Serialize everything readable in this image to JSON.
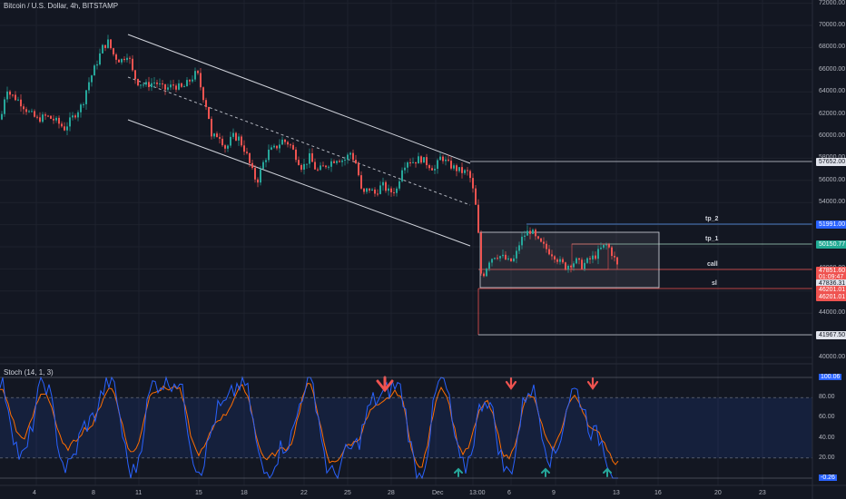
{
  "header": {
    "title": "Bitcoin / U.S. Dollar, 4h, BITSTAMP"
  },
  "indicator": {
    "title": "Stoch (14, 1, 3)"
  },
  "colors": {
    "up": "#26a69a",
    "down": "#ef5350",
    "k_line": "#2962ff",
    "d_line": "#ff6d00",
    "bg": "#131722",
    "grid": "#1e222d"
  },
  "price_axis": {
    "ticks": [
      "72000.00",
      "70000.00",
      "68000.00",
      "66000.00",
      "64000.00",
      "62000.00",
      "60000.00",
      "58000.00",
      "56000.00",
      "54000.00",
      "52000.00",
      "50000.00",
      "48000.00",
      "46000.00",
      "44000.00",
      "42000.00",
      "40000.00"
    ]
  },
  "price_tags": {
    "channel_top": "57652.00",
    "tp2": "51991.00",
    "tp1": "50150.77",
    "last": "47851.60",
    "countdown": "01:09:47",
    "call": "47836.31",
    "sl_1": "46201.01",
    "sl_2": "46201.01",
    "bottom": "41967.50"
  },
  "levels": {
    "tp2": "tp_2",
    "tp1": "tp_1",
    "call": "call",
    "sl": "sl"
  },
  "stoch_axis": {
    "ticks": [
      "100.06",
      "80.00",
      "60.00",
      "40.00",
      "20.00",
      "-0.26"
    ]
  },
  "time_axis": {
    "ticks": [
      "4",
      "8",
      "11",
      "15",
      "18",
      "22",
      "25",
      "28",
      "Dec",
      "13:00",
      "6",
      "9",
      "13",
      "16",
      "20",
      "23"
    ]
  },
  "chart_data": {
    "type": "candlestick",
    "title": "Bitcoin / U.S. Dollar, 4h, BITSTAMP",
    "ylim": [
      39000,
      72000
    ],
    "channel": {
      "upper": [
        [
          68500,
          57652
        ]
      ],
      "lower": [
        [
          62000,
          52500
        ]
      ]
    },
    "horizontal_levels": [
      57652.0,
      51991.0,
      50150.77,
      47836.31,
      46201.01,
      41967.5
    ],
    "price_path": [
      [
        0,
        61500
      ],
      [
        6,
        64500
      ],
      [
        10,
        63800
      ],
      [
        20,
        63200
      ],
      [
        30,
        62200
      ],
      [
        40,
        61500
      ],
      [
        50,
        61800
      ],
      [
        60,
        61400
      ],
      [
        70,
        60700
      ],
      [
        80,
        61800
      ],
      [
        90,
        62900
      ],
      [
        95,
        64500
      ],
      [
        105,
        66500
      ],
      [
        112,
        68000
      ],
      [
        118,
        68500
      ],
      [
        125,
        67200
      ],
      [
        132,
        66800
      ],
      [
        140,
        67500
      ],
      [
        145,
        65800
      ],
      [
        150,
        64900
      ],
      [
        160,
        64600
      ],
      [
        170,
        64900
      ],
      [
        180,
        64200
      ],
      [
        190,
        64600
      ],
      [
        200,
        64300
      ],
      [
        210,
        65200
      ],
      [
        216,
        65800
      ],
      [
        222,
        63800
      ],
      [
        228,
        62300
      ],
      [
        232,
        59800
      ],
      [
        240,
        60200
      ],
      [
        248,
        58800
      ],
      [
        255,
        60000
      ],
      [
        262,
        59800
      ],
      [
        270,
        58500
      ],
      [
        276,
        57000
      ],
      [
        282,
        55800
      ],
      [
        288,
        57400
      ],
      [
        295,
        58600
      ],
      [
        302,
        58900
      ],
      [
        310,
        59600
      ],
      [
        318,
        59300
      ],
      [
        325,
        58200
      ],
      [
        332,
        57100
      ],
      [
        340,
        58100
      ],
      [
        348,
        56800
      ],
      [
        355,
        57200
      ],
      [
        362,
        57600
      ],
      [
        370,
        58000
      ],
      [
        378,
        57800
      ],
      [
        385,
        58500
      ],
      [
        392,
        57400
      ],
      [
        398,
        54600
      ],
      [
        405,
        55300
      ],
      [
        412,
        54800
      ],
      [
        420,
        55600
      ],
      [
        428,
        54900
      ],
      [
        436,
        55200
      ],
      [
        442,
        57200
      ],
      [
        448,
        57800
      ],
      [
        455,
        57700
      ],
      [
        462,
        58000
      ],
      [
        470,
        57500
      ],
      [
        478,
        57000
      ],
      [
        485,
        58200
      ],
      [
        492,
        57500
      ],
      [
        500,
        57100
      ],
      [
        507,
        56800
      ],
      [
        514,
        56700
      ],
      [
        518,
        56000
      ],
      [
        522,
        54200
      ],
      [
        525,
        52600
      ],
      [
        528,
        48000
      ],
      [
        530,
        47200
      ],
      [
        534,
        48000
      ],
      [
        538,
        48800
      ],
      [
        545,
        49300
      ],
      [
        552,
        49100
      ],
      [
        560,
        48600
      ],
      [
        566,
        48900
      ],
      [
        572,
        50500
      ],
      [
        578,
        51200
      ],
      [
        584,
        51500
      ],
      [
        590,
        50600
      ],
      [
        597,
        50100
      ],
      [
        604,
        49600
      ],
      [
        610,
        49200
      ],
      [
        616,
        48600
      ],
      [
        622,
        48200
      ],
      [
        628,
        48500
      ],
      [
        634,
        48700
      ],
      [
        640,
        48300
      ],
      [
        648,
        48800
      ],
      [
        655,
        49200
      ],
      [
        662,
        49900
      ],
      [
        668,
        50200
      ],
      [
        672,
        49600
      ],
      [
        676,
        48900
      ],
      [
        681,
        47850
      ]
    ],
    "stochastic": {
      "k": [
        95,
        20,
        95,
        10,
        55,
        97,
        5,
        94,
        97,
        10,
        70,
        95,
        5,
        35,
        98,
        3,
        30,
        78,
        92,
        2,
        98,
        10,
        80,
        5,
        90,
        20,
        87,
        42,
        0
      ],
      "d": [
        88,
        40,
        85,
        30,
        50,
        89,
        25,
        88,
        90,
        25,
        60,
        90,
        20,
        30,
        92,
        15,
        35,
        70,
        85,
        10,
        90,
        25,
        75,
        20,
        82,
        30,
        80,
        45,
        15
      ]
    },
    "signals": [
      {
        "type": "down",
        "x": 424
      },
      {
        "type": "down",
        "x": 563
      },
      {
        "type": "down",
        "x": 653
      },
      {
        "type": "up",
        "x": 505
      },
      {
        "type": "up",
        "x": 601
      },
      {
        "type": "up",
        "x": 669
      }
    ]
  }
}
